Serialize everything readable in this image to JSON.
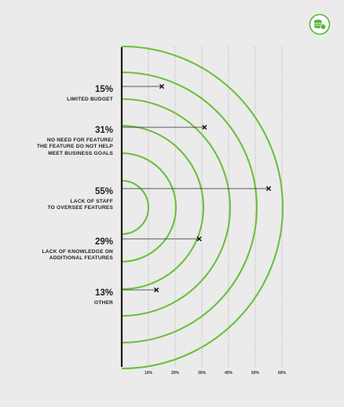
{
  "chart_data": {
    "type": "radial-bar",
    "x_axis": {
      "ticks": [
        "10%",
        "20%",
        "30%",
        "40%",
        "50%",
        "60%"
      ],
      "tick_values": [
        10,
        20,
        30,
        40,
        50,
        60
      ],
      "range": [
        0,
        60
      ],
      "gridlines": "dotted"
    },
    "items": [
      {
        "value": 15,
        "label_value": "15%",
        "label": "LIMITED BUDGET"
      },
      {
        "value": 31,
        "label_value": "31%",
        "label": "NO NEED FOR FEATURE/ THE FEATURE DO NOT HELP MEET BUSINESS GOALS"
      },
      {
        "value": 55,
        "label_value": "55%",
        "label": "LACK OF STAFF TO OVERSEE FEATURES"
      },
      {
        "value": 29,
        "label_value": "29%",
        "label": "LACK OF KNOWLEDGE ON ADDITIONAL FEATURES"
      },
      {
        "value": 13,
        "label_value": "13%",
        "label": "OTHER"
      }
    ],
    "colors": {
      "arcs": "#6cbf3c",
      "background": "#ebebeb",
      "text": "#1f1f1f"
    }
  },
  "logo": {
    "icon": "coin-stack-icon",
    "color": "#55b63c"
  }
}
